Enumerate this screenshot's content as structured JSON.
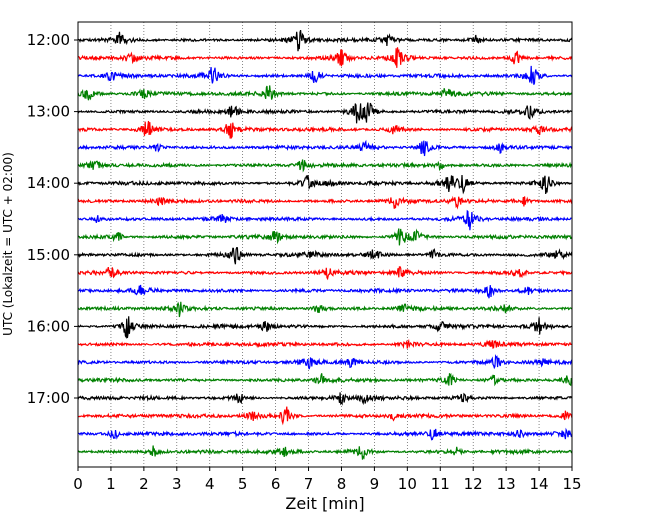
{
  "chart_data": {
    "type": "line",
    "title": "",
    "xlabel": "Zeit  [min]",
    "ylabel": "UTC (Lokalzeit = UTC + 02:00)",
    "xlim": [
      0,
      15
    ],
    "x_ticks": [
      0,
      1,
      2,
      3,
      4,
      5,
      6,
      7,
      8,
      9,
      10,
      11,
      12,
      13,
      14,
      15
    ],
    "x_tick_labels": [
      "0",
      "1",
      "2",
      "3",
      "4",
      "5",
      "6",
      "7",
      "8",
      "9",
      "10",
      "11",
      "12",
      "13",
      "14",
      "15"
    ],
    "x_grid": true,
    "grid_style": "dotted",
    "y_tick_labels": [
      "12:00",
      "13:00",
      "14:00",
      "15:00",
      "16:00",
      "17:00"
    ],
    "y_tick_rows": [
      0,
      4,
      8,
      12,
      16,
      20
    ],
    "trace_colors": [
      "#000000",
      "#ff0000",
      "#0000ff",
      "#008000"
    ],
    "traces": [
      {
        "start": "12:00",
        "events": [
          [
            1.3,
            0.6
          ],
          [
            6.7,
            0.9
          ],
          [
            9.4,
            0.5
          ],
          [
            12.1,
            0.4
          ]
        ]
      },
      {
        "start": "12:15",
        "events": [
          [
            1.6,
            0.5
          ],
          [
            8.0,
            0.7
          ],
          [
            9.7,
            0.8
          ],
          [
            13.3,
            0.6
          ]
        ]
      },
      {
        "start": "12:30",
        "events": [
          [
            1.0,
            0.4
          ],
          [
            4.1,
            0.8
          ],
          [
            7.2,
            0.6
          ],
          [
            13.8,
            0.9
          ]
        ]
      },
      {
        "start": "12:45",
        "events": [
          [
            0.3,
            0.5
          ],
          [
            2.0,
            0.4
          ],
          [
            5.8,
            0.8
          ],
          [
            11.2,
            0.7
          ]
        ]
      },
      {
        "start": "13:00",
        "events": [
          [
            4.7,
            0.6
          ],
          [
            8.5,
            0.9
          ],
          [
            8.8,
            0.8
          ],
          [
            13.7,
            0.5
          ]
        ]
      },
      {
        "start": "13:15",
        "events": [
          [
            2.1,
            0.9
          ],
          [
            4.6,
            0.8
          ],
          [
            9.6,
            0.4
          ],
          [
            14.0,
            0.4
          ]
        ]
      },
      {
        "start": "13:30",
        "events": [
          [
            2.4,
            0.3
          ],
          [
            8.7,
            0.4
          ],
          [
            10.5,
            0.7
          ],
          [
            12.8,
            0.4
          ]
        ]
      },
      {
        "start": "13:45",
        "events": [
          [
            0.5,
            0.3
          ],
          [
            6.8,
            0.5
          ],
          [
            11.0,
            0.3
          ]
        ]
      },
      {
        "start": "14:00",
        "events": [
          [
            7.0,
            0.7
          ],
          [
            7.7,
            0.5
          ],
          [
            11.3,
            0.8
          ],
          [
            11.7,
            0.6
          ],
          [
            14.2,
            0.9
          ]
        ]
      },
      {
        "start": "14:15",
        "events": [
          [
            2.5,
            0.4
          ],
          [
            9.6,
            0.6
          ],
          [
            11.5,
            0.5
          ],
          [
            13.5,
            0.4
          ]
        ]
      },
      {
        "start": "14:30",
        "events": [
          [
            0.6,
            0.3
          ],
          [
            4.4,
            0.3
          ],
          [
            11.9,
            0.8
          ]
        ]
      },
      {
        "start": "14:45",
        "events": [
          [
            1.2,
            0.4
          ],
          [
            6.0,
            0.5
          ],
          [
            9.8,
            0.8
          ],
          [
            10.3,
            0.4
          ]
        ]
      },
      {
        "start": "15:00",
        "events": [
          [
            4.8,
            0.8
          ],
          [
            7.1,
            0.4
          ],
          [
            9.0,
            0.4
          ],
          [
            10.8,
            0.4
          ],
          [
            14.6,
            0.4
          ]
        ]
      },
      {
        "start": "15:15",
        "events": [
          [
            1.0,
            0.5
          ],
          [
            7.6,
            0.4
          ],
          [
            9.8,
            0.5
          ],
          [
            13.4,
            0.5
          ]
        ]
      },
      {
        "start": "15:30",
        "events": [
          [
            1.9,
            0.5
          ],
          [
            12.5,
            0.6
          ],
          [
            13.6,
            0.4
          ]
        ]
      },
      {
        "start": "15:45",
        "events": [
          [
            3.1,
            0.6
          ],
          [
            7.3,
            0.4
          ],
          [
            9.9,
            0.4
          ],
          [
            13.0,
            0.3
          ]
        ]
      },
      {
        "start": "16:00",
        "events": [
          [
            1.5,
            0.9
          ],
          [
            5.7,
            0.4
          ],
          [
            11.0,
            0.4
          ],
          [
            14.0,
            0.7
          ]
        ]
      },
      {
        "start": "16:15",
        "events": [
          [
            10.0,
            0.4
          ],
          [
            12.6,
            0.4
          ]
        ]
      },
      {
        "start": "16:30",
        "events": [
          [
            7.0,
            0.5
          ],
          [
            8.3,
            0.4
          ],
          [
            12.7,
            0.5
          ],
          [
            14.1,
            0.3
          ]
        ]
      },
      {
        "start": "16:45",
        "events": [
          [
            7.4,
            0.5
          ],
          [
            11.3,
            0.5
          ],
          [
            12.6,
            0.4
          ],
          [
            14.9,
            0.4
          ]
        ]
      },
      {
        "start": "17:00",
        "events": [
          [
            4.9,
            0.4
          ],
          [
            8.0,
            0.4
          ],
          [
            8.7,
            0.4
          ],
          [
            11.7,
            0.3
          ]
        ]
      },
      {
        "start": "17:15",
        "events": [
          [
            5.3,
            0.5
          ],
          [
            6.3,
            0.8
          ],
          [
            9.6,
            0.3
          ],
          [
            14.8,
            0.4
          ]
        ]
      },
      {
        "start": "17:30",
        "events": [
          [
            1.1,
            0.4
          ],
          [
            10.8,
            0.5
          ],
          [
            13.4,
            0.3
          ],
          [
            14.8,
            0.5
          ]
        ]
      },
      {
        "start": "17:45",
        "events": [
          [
            2.3,
            0.5
          ],
          [
            6.3,
            0.4
          ],
          [
            8.6,
            0.7
          ],
          [
            11.5,
            0.3
          ]
        ]
      }
    ]
  }
}
